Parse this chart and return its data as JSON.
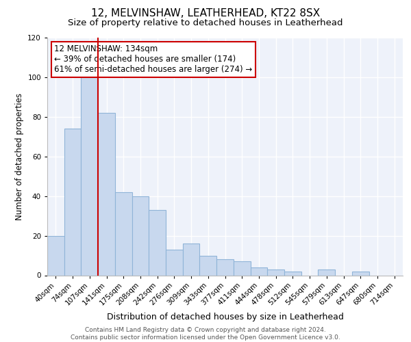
{
  "title": "12, MELVINSHAW, LEATHERHEAD, KT22 8SX",
  "subtitle": "Size of property relative to detached houses in Leatherhead",
  "xlabel": "Distribution of detached houses by size in Leatherhead",
  "ylabel": "Number of detached properties",
  "categories": [
    "40sqm",
    "74sqm",
    "107sqm",
    "141sqm",
    "175sqm",
    "208sqm",
    "242sqm",
    "276sqm",
    "309sqm",
    "343sqm",
    "377sqm",
    "411sqm",
    "444sqm",
    "478sqm",
    "512sqm",
    "545sqm",
    "579sqm",
    "613sqm",
    "647sqm",
    "680sqm",
    "714sqm"
  ],
  "values": [
    20,
    74,
    101,
    82,
    42,
    40,
    33,
    13,
    16,
    10,
    8,
    7,
    4,
    3,
    2,
    0,
    3,
    0,
    2,
    0,
    0
  ],
  "bar_color": "#c8d8ee",
  "bar_edge_color": "#90b4d8",
  "property_line_x": 2.5,
  "property_line_color": "#cc0000",
  "annotation_text": "12 MELVINSHAW: 134sqm\n← 39% of detached houses are smaller (174)\n61% of semi-detached houses are larger (274) →",
  "annotation_box_color": "#ffffff",
  "annotation_box_edge_color": "#cc0000",
  "ylim": [
    0,
    120
  ],
  "yticks": [
    0,
    20,
    40,
    60,
    80,
    100,
    120
  ],
  "background_color": "#eef2fa",
  "footer_text": "Contains HM Land Registry data © Crown copyright and database right 2024.\nContains public sector information licensed under the Open Government Licence v3.0.",
  "title_fontsize": 11,
  "subtitle_fontsize": 9.5,
  "xlabel_fontsize": 9,
  "ylabel_fontsize": 8.5,
  "tick_fontsize": 7.5,
  "annotation_fontsize": 8.5,
  "footer_fontsize": 6.5
}
